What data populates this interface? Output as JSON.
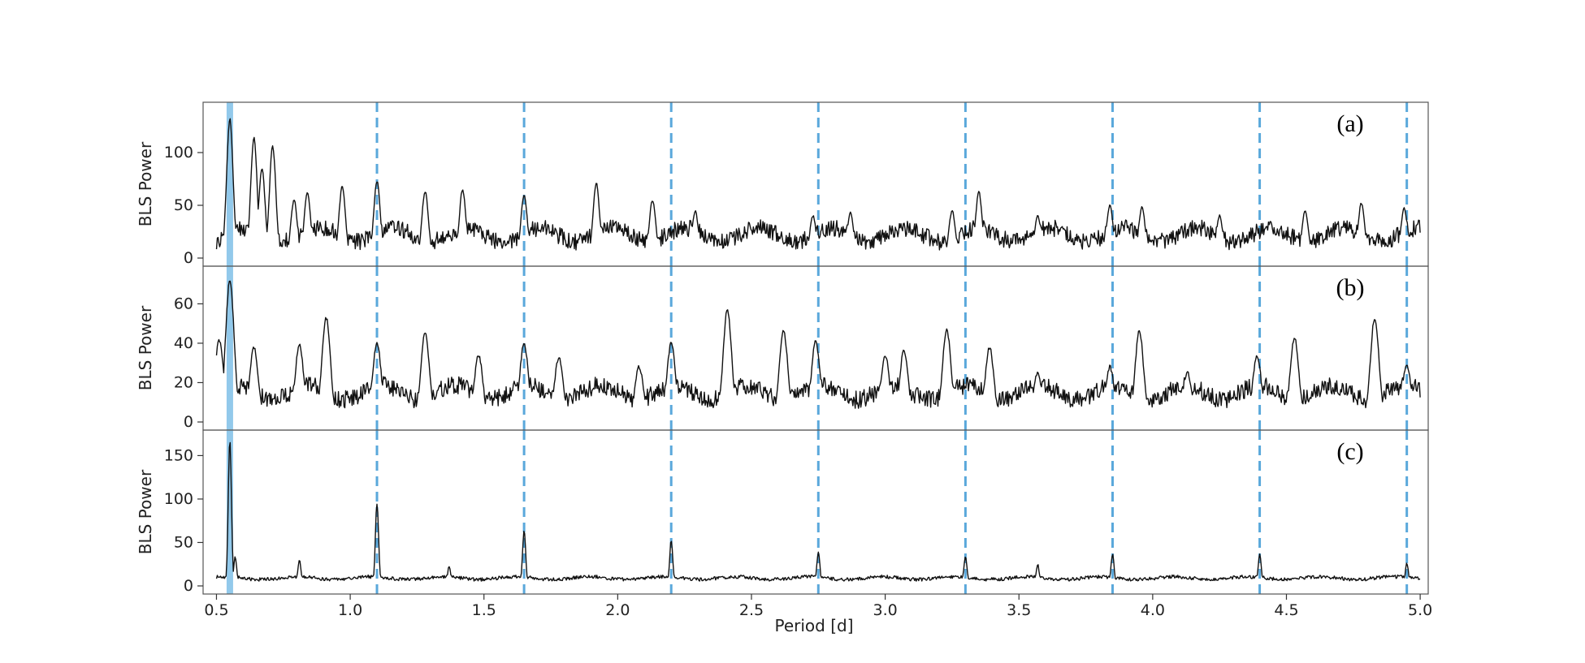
{
  "chart_data": {
    "type": "line",
    "xlabel": "Period [d]",
    "xlim": [
      0.45,
      5.03
    ],
    "x_ticks": [
      "0.5",
      "1.0",
      "1.5",
      "2.0",
      "2.5",
      "3.0",
      "3.5",
      "4.0",
      "4.5",
      "5.0"
    ],
    "x_tick_values": [
      0.5,
      1.0,
      1.5,
      2.0,
      2.5,
      3.0,
      3.5,
      4.0,
      4.5,
      5.0
    ],
    "grid": false,
    "highlight_period": 0.55,
    "harmonic_periods": [
      1.1,
      1.65,
      2.2,
      2.75,
      3.3,
      3.85,
      4.4,
      4.95
    ],
    "colors": {
      "line": "#111111",
      "harmonic": "#5aa8db",
      "highlight": "#7fbfe8",
      "frame": "#555555"
    },
    "panels": [
      {
        "tag": "(a)",
        "ylabel": "BLS Power",
        "ylim": [
          0,
          140
        ],
        "y_ticks": [
          "0",
          "50",
          "100"
        ],
        "y_tick_values": [
          0,
          50,
          100
        ],
        "peaks": [
          [
            0.55,
            132
          ],
          [
            0.64,
            114
          ],
          [
            0.67,
            85
          ],
          [
            0.71,
            106
          ],
          [
            0.79,
            55
          ],
          [
            0.84,
            62
          ],
          [
            0.97,
            68
          ],
          [
            1.1,
            73
          ],
          [
            1.28,
            63
          ],
          [
            1.42,
            65
          ],
          [
            1.65,
            60
          ],
          [
            1.92,
            71
          ],
          [
            2.13,
            55
          ],
          [
            2.29,
            44
          ],
          [
            2.73,
            40
          ],
          [
            2.87,
            43
          ],
          [
            3.25,
            45
          ],
          [
            3.35,
            63
          ],
          [
            3.57,
            40
          ],
          [
            3.84,
            50
          ],
          [
            3.96,
            48
          ],
          [
            4.25,
            40
          ],
          [
            4.57,
            45
          ],
          [
            4.78,
            52
          ],
          [
            4.94,
            47
          ]
        ],
        "baseline": 22,
        "noise": 16,
        "peak_width": 0.012
      },
      {
        "tag": "(b)",
        "ylabel": "BLS Power",
        "ylim": [
          0,
          75
        ],
        "y_ticks": [
          "0",
          "20",
          "40",
          "60"
        ],
        "y_tick_values": [
          0,
          20,
          40,
          60
        ],
        "peaks": [
          [
            0.51,
            42
          ],
          [
            0.55,
            72
          ],
          [
            0.64,
            38
          ],
          [
            0.81,
            39
          ],
          [
            0.91,
            53
          ],
          [
            1.1,
            40
          ],
          [
            1.28,
            45
          ],
          [
            1.48,
            34
          ],
          [
            1.65,
            40
          ],
          [
            1.78,
            33
          ],
          [
            2.08,
            28
          ],
          [
            2.2,
            40
          ],
          [
            2.41,
            57
          ],
          [
            2.62,
            46
          ],
          [
            2.74,
            41
          ],
          [
            3.0,
            34
          ],
          [
            3.07,
            36
          ],
          [
            3.23,
            47
          ],
          [
            3.39,
            38
          ],
          [
            3.57,
            25
          ],
          [
            3.84,
            28
          ],
          [
            3.95,
            46
          ],
          [
            4.13,
            25
          ],
          [
            4.39,
            34
          ],
          [
            4.53,
            43
          ],
          [
            4.83,
            53
          ],
          [
            4.95,
            29
          ]
        ],
        "baseline": 15,
        "noise": 9,
        "peak_width": 0.016
      },
      {
        "tag": "(c)",
        "ylabel": "BLS Power",
        "ylim": [
          0,
          170
        ],
        "y_ticks": [
          "0",
          "50",
          "100",
          "150"
        ],
        "y_tick_values": [
          0,
          50,
          100,
          150
        ],
        "peaks": [
          [
            0.55,
            168
          ],
          [
            0.57,
            33
          ],
          [
            0.81,
            30
          ],
          [
            1.1,
            95
          ],
          [
            1.37,
            23
          ],
          [
            1.65,
            63
          ],
          [
            2.2,
            52
          ],
          [
            2.75,
            38
          ],
          [
            3.3,
            34
          ],
          [
            3.57,
            25
          ],
          [
            3.85,
            36
          ],
          [
            4.4,
            36
          ],
          [
            4.95,
            26
          ]
        ],
        "baseline": 9,
        "noise": 4,
        "peak_width": 0.006
      }
    ]
  }
}
